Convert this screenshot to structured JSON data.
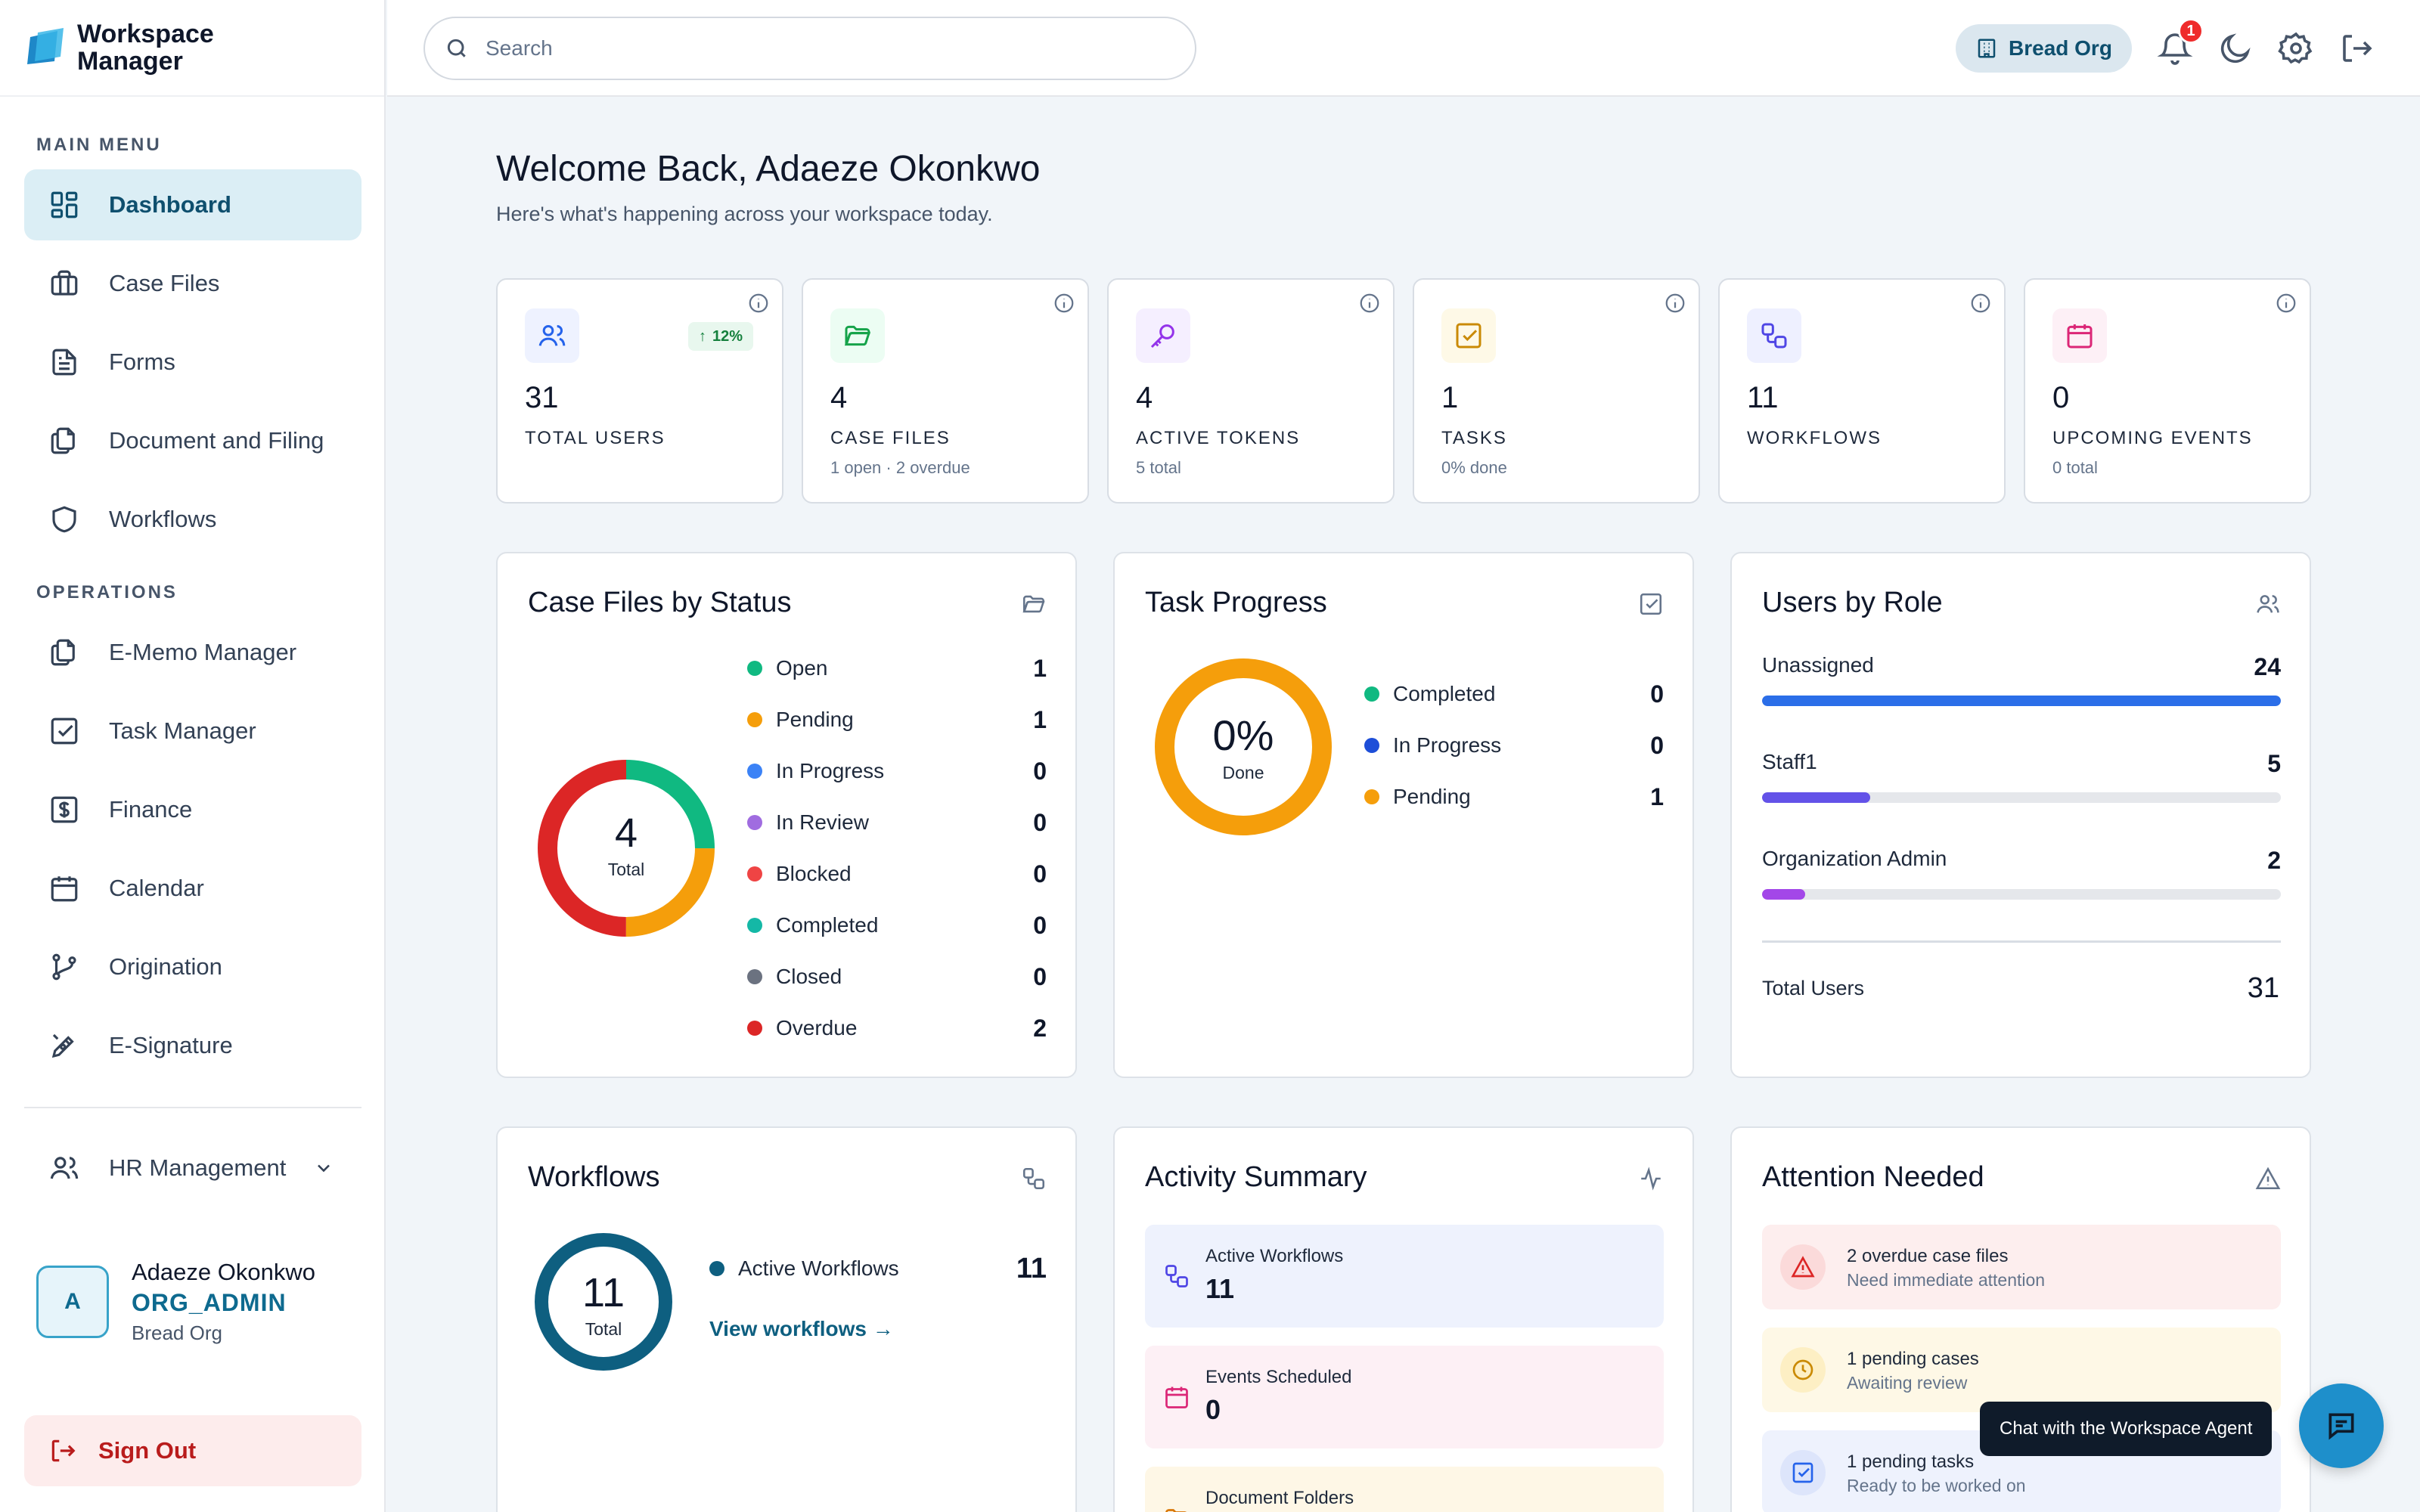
{
  "brand": {
    "name": "Workspace Manager"
  },
  "sidebar": {
    "main_menu_label": "MAIN MENU",
    "main_items": [
      {
        "label": "Dashboard",
        "icon": "grid-icon",
        "active": true
      },
      {
        "label": "Case Files",
        "icon": "briefcase-icon"
      },
      {
        "label": "Forms",
        "icon": "document-icon"
      },
      {
        "label": "Document and Filing",
        "icon": "files-icon"
      },
      {
        "label": "Workflows",
        "icon": "shield-icon"
      }
    ],
    "operations_label": "OPERATIONS",
    "ops_items": [
      {
        "label": "E-Memo Manager",
        "icon": "memo-icon"
      },
      {
        "label": "Task Manager",
        "icon": "checkbox-icon"
      },
      {
        "label": "Finance",
        "icon": "dollar-icon"
      },
      {
        "label": "Calendar",
        "icon": "calendar-icon"
      },
      {
        "label": "Origination",
        "icon": "branch-icon"
      },
      {
        "label": "E-Signature",
        "icon": "pen-icon"
      }
    ],
    "hr_label": "HR Management",
    "user": {
      "initial": "A",
      "name": "Adaeze Okonkwo",
      "role": "ORG_ADMIN",
      "org": "Bread Org"
    },
    "sign_out": "Sign Out"
  },
  "topbar": {
    "search_placeholder": "Search",
    "org_name": "Bread Org",
    "notification_count": "1"
  },
  "welcome": {
    "title": "Welcome Back, Adaeze Okonkwo",
    "subtitle": "Here's what's happening across your workspace today."
  },
  "stats": [
    {
      "value": "31",
      "label": "TOTAL USERS",
      "sub": "",
      "trend": "12%",
      "color": "#2563eb",
      "bg": "#eef2ff"
    },
    {
      "value": "4",
      "label": "CASE FILES",
      "sub": "1 open · 2 overdue",
      "color": "#16a34a",
      "bg": "#ecfdf3"
    },
    {
      "value": "4",
      "label": "ACTIVE TOKENS",
      "sub": "5 total",
      "color": "#9333ea",
      "bg": "#f5efff"
    },
    {
      "value": "1",
      "label": "TASKS",
      "sub": "0% done",
      "color": "#ca8a04",
      "bg": "#fef9e7"
    },
    {
      "value": "11",
      "label": "WORKFLOWS",
      "sub": "",
      "color": "#4f46e5",
      "bg": "#eef0ff"
    },
    {
      "value": "0",
      "label": "UPCOMING EVENTS",
      "sub": "0 total",
      "color": "#db2777",
      "bg": "#fdf0f6"
    }
  ],
  "case_status": {
    "title": "Case Files by Status",
    "total": "4",
    "total_label": "Total",
    "items": [
      {
        "name": "Open",
        "value": 1,
        "color": "#10b981"
      },
      {
        "name": "Pending",
        "value": 1,
        "color": "#f59e0b"
      },
      {
        "name": "In Progress",
        "value": 0,
        "color": "#3b82f6"
      },
      {
        "name": "In Review",
        "value": 0,
        "color": "#a06ce0"
      },
      {
        "name": "Blocked",
        "value": 0,
        "color": "#ef4444"
      },
      {
        "name": "Completed",
        "value": 0,
        "color": "#14b8a6"
      },
      {
        "name": "Closed",
        "value": 0,
        "color": "#6b7280"
      },
      {
        "name": "Overdue",
        "value": 2,
        "color": "#dc2626"
      }
    ]
  },
  "task_progress": {
    "title": "Task Progress",
    "percent": "0%",
    "done_label": "Done",
    "items": [
      {
        "name": "Completed",
        "value": 0,
        "color": "#10b981"
      },
      {
        "name": "In Progress",
        "value": 0,
        "color": "#1d4ed8"
      },
      {
        "name": "Pending",
        "value": 1,
        "color": "#f59e0b"
      }
    ]
  },
  "users_by_role": {
    "title": "Users by Role",
    "roles": [
      {
        "name": "Unassigned",
        "value": 24,
        "color": "#2b6ee8"
      },
      {
        "name": "Staff1",
        "value": 5,
        "color": "#6352e8"
      },
      {
        "name": "Organization Admin",
        "value": 2,
        "color": "#a347e8"
      }
    ],
    "total_label": "Total Users",
    "total": "31"
  },
  "workflows": {
    "title": "Workflows",
    "total": "11",
    "total_label": "Total",
    "legend_name": "Active Workflows",
    "legend_value": "11",
    "link": "View workflows →"
  },
  "activity": {
    "title": "Activity Summary",
    "tiles": [
      {
        "label": "Active Workflows",
        "value": "11",
        "bg": "#eef2fd",
        "color": "#4f46e5"
      },
      {
        "label": "Events Scheduled",
        "value": "0",
        "bg": "#fdf0f5",
        "color": "#db2777"
      },
      {
        "label": "Document Folders",
        "value": "",
        "bg": "#fef7e6",
        "color": "#d97706"
      }
    ]
  },
  "attention": {
    "title": "Attention Needed",
    "tiles": [
      {
        "title": "2 overdue case files",
        "sub": "Need immediate attention",
        "bg": "#fdeeee",
        "circle": "#fbdada",
        "color": "#dc2626"
      },
      {
        "title": "1 pending cases",
        "sub": "Awaiting review",
        "bg": "#fef8e6",
        "circle": "#fdefc4",
        "color": "#ca8a04"
      },
      {
        "title": "1 pending tasks",
        "sub": "Ready to be worked on",
        "bg": "#eef2fd",
        "circle": "#dde5fb",
        "color": "#2563eb"
      }
    ]
  },
  "chat": {
    "tooltip": "Chat with the Workspace Agent"
  }
}
